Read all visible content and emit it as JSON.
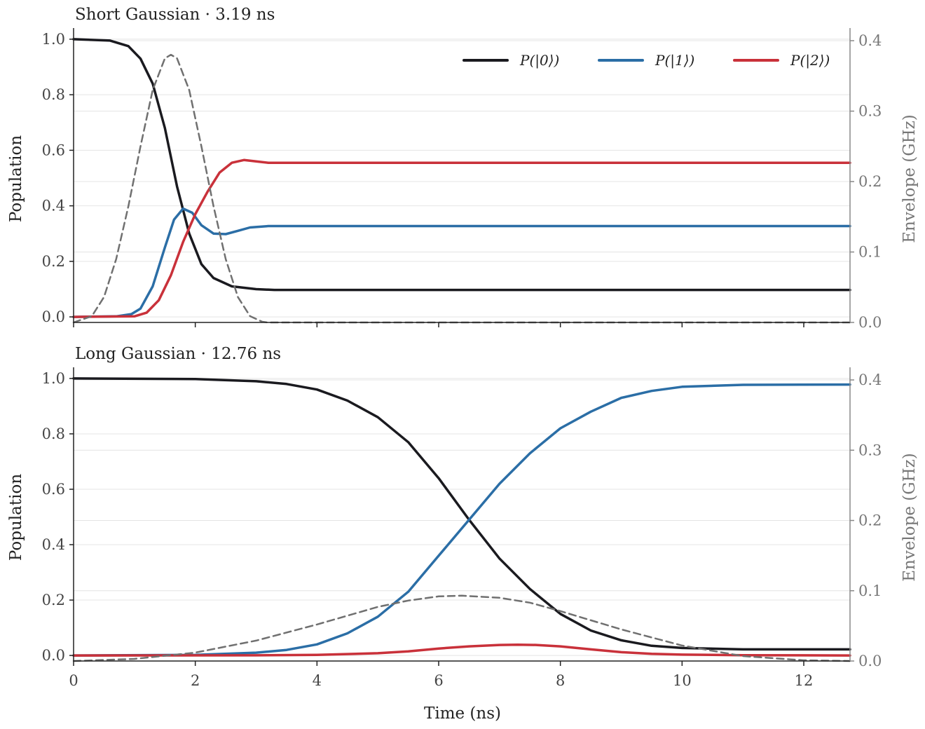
{
  "chart_data": [
    {
      "type": "line",
      "title": "Short Gaussian · 3.19 ns",
      "xlabel": "",
      "ylabel": "Population",
      "y2label": "Envelope (GHz)",
      "xlim": [
        0,
        12.76
      ],
      "ylim": [
        -0.02,
        1.02
      ],
      "y2lim": [
        0,
        0.41
      ],
      "xticks": [
        0,
        2,
        4,
        6,
        8,
        10,
        12
      ],
      "xtick_labels": [
        "",
        "",
        "",
        "",
        "",
        "",
        ""
      ],
      "yticks": [
        0.0,
        0.2,
        0.4,
        0.6,
        0.8,
        1.0
      ],
      "ytick_labels": [
        "0.0",
        "0.2",
        "0.4",
        "0.6",
        "0.8",
        "1.0"
      ],
      "y2ticks": [
        0.0,
        0.1,
        0.2,
        0.3,
        0.4
      ],
      "y2tick_labels": [
        "0.0",
        "0.1",
        "0.2",
        "0.3",
        "0.4"
      ],
      "grid": "horizontal",
      "legend_position": "top-right",
      "series": [
        {
          "name": "P(|0⟩)",
          "color": "#1a1a1f",
          "style": "solid",
          "axis": "left",
          "x": [
            0,
            0.6,
            0.9,
            1.1,
            1.3,
            1.5,
            1.7,
            1.9,
            2.1,
            2.3,
            2.6,
            3.0,
            3.3,
            4.0,
            6.0,
            8.0,
            10.0,
            12.76
          ],
          "y": [
            1.0,
            0.995,
            0.975,
            0.93,
            0.84,
            0.68,
            0.47,
            0.3,
            0.19,
            0.14,
            0.11,
            0.1,
            0.097,
            0.097,
            0.097,
            0.097,
            0.097,
            0.097
          ]
        },
        {
          "name": "P(|1⟩)",
          "color": "#2b6ea6",
          "style": "solid",
          "axis": "left",
          "x": [
            0,
            0.7,
            0.95,
            1.1,
            1.3,
            1.5,
            1.65,
            1.8,
            1.95,
            2.1,
            2.3,
            2.5,
            2.7,
            2.9,
            3.2,
            3.5,
            5.0,
            8.0,
            12.76
          ],
          "y": [
            0.0,
            0.002,
            0.01,
            0.03,
            0.11,
            0.25,
            0.35,
            0.39,
            0.375,
            0.33,
            0.3,
            0.298,
            0.31,
            0.322,
            0.327,
            0.327,
            0.327,
            0.327,
            0.327
          ]
        },
        {
          "name": "P(|2⟩)",
          "color": "#c9313a",
          "style": "solid",
          "axis": "left",
          "x": [
            0,
            1.0,
            1.2,
            1.4,
            1.6,
            1.8,
            2.0,
            2.2,
            2.4,
            2.6,
            2.8,
            3.0,
            3.2,
            3.5,
            5.0,
            8.0,
            12.76
          ],
          "y": [
            0.0,
            0.002,
            0.015,
            0.06,
            0.15,
            0.27,
            0.37,
            0.45,
            0.52,
            0.555,
            0.565,
            0.56,
            0.555,
            0.555,
            0.555,
            0.555,
            0.555
          ]
        },
        {
          "name": "",
          "color": "#707070",
          "style": "dashed",
          "axis": "right",
          "x": [
            0,
            0.3,
            0.5,
            0.7,
            0.9,
            1.1,
            1.3,
            1.5,
            1.6,
            1.7,
            1.9,
            2.1,
            2.3,
            2.5,
            2.7,
            2.9,
            3.1,
            3.19,
            12.76
          ],
          "y": [
            0.0,
            0.009,
            0.036,
            0.09,
            0.165,
            0.25,
            0.33,
            0.375,
            0.38,
            0.375,
            0.33,
            0.25,
            0.165,
            0.09,
            0.036,
            0.009,
            0.001,
            0.0,
            0.0
          ]
        }
      ]
    },
    {
      "type": "line",
      "title": "Long Gaussian · 12.76 ns",
      "xlabel": "Time (ns)",
      "ylabel": "Population",
      "y2label": "Envelope (GHz)",
      "xlim": [
        0,
        12.76
      ],
      "ylim": [
        -0.02,
        1.02
      ],
      "y2lim": [
        0,
        0.41
      ],
      "xticks": [
        0,
        2,
        4,
        6,
        8,
        10,
        12
      ],
      "xtick_labels": [
        "0",
        "2",
        "4",
        "6",
        "8",
        "10",
        "12"
      ],
      "yticks": [
        0.0,
        0.2,
        0.4,
        0.6,
        0.8,
        1.0
      ],
      "ytick_labels": [
        "0.0",
        "0.2",
        "0.4",
        "0.6",
        "0.8",
        "1.0"
      ],
      "y2ticks": [
        0.0,
        0.1,
        0.2,
        0.3,
        0.4
      ],
      "y2tick_labels": [
        "0.0",
        "0.1",
        "0.2",
        "0.3",
        "0.4"
      ],
      "grid": "horizontal",
      "series": [
        {
          "name": "P(|0⟩)",
          "color": "#1a1a1f",
          "style": "solid",
          "axis": "left",
          "x": [
            0,
            2,
            3,
            3.5,
            4,
            4.5,
            5,
            5.5,
            6,
            6.5,
            7,
            7.5,
            8,
            8.5,
            9,
            9.5,
            10,
            11,
            12.76
          ],
          "y": [
            1.0,
            0.998,
            0.99,
            0.98,
            0.96,
            0.92,
            0.86,
            0.77,
            0.64,
            0.49,
            0.35,
            0.24,
            0.15,
            0.09,
            0.055,
            0.035,
            0.027,
            0.022,
            0.022
          ]
        },
        {
          "name": "P(|1⟩)",
          "color": "#2b6ea6",
          "style": "solid",
          "axis": "left",
          "x": [
            0,
            2,
            3,
            3.5,
            4,
            4.5,
            5,
            5.5,
            6,
            6.5,
            7,
            7.5,
            8,
            8.5,
            9,
            9.5,
            10,
            11,
            12.76
          ],
          "y": [
            0.0,
            0.002,
            0.01,
            0.02,
            0.04,
            0.08,
            0.14,
            0.23,
            0.36,
            0.49,
            0.62,
            0.73,
            0.82,
            0.88,
            0.93,
            0.955,
            0.97,
            0.977,
            0.978
          ]
        },
        {
          "name": "P(|2⟩)",
          "color": "#c9313a",
          "style": "solid",
          "axis": "left",
          "x": [
            0,
            3,
            4,
            5,
            5.5,
            6,
            6.5,
            7,
            7.3,
            7.6,
            8,
            8.5,
            9,
            9.5,
            10,
            11,
            12.76
          ],
          "y": [
            0.0,
            0.0005,
            0.002,
            0.008,
            0.015,
            0.025,
            0.033,
            0.038,
            0.039,
            0.038,
            0.033,
            0.022,
            0.012,
            0.006,
            0.003,
            0.001,
            0.0
          ]
        },
        {
          "name": "",
          "color": "#707070",
          "style": "dashed",
          "axis": "right",
          "x": [
            0,
            1,
            2,
            3,
            4,
            5,
            5.5,
            6,
            6.38,
            7,
            7.5,
            8,
            9,
            10,
            11,
            12,
            12.76
          ],
          "y": [
            0.0,
            0.003,
            0.012,
            0.029,
            0.052,
            0.077,
            0.086,
            0.092,
            0.093,
            0.09,
            0.083,
            0.071,
            0.045,
            0.022,
            0.007,
            0.001,
            0.0
          ]
        }
      ]
    }
  ]
}
